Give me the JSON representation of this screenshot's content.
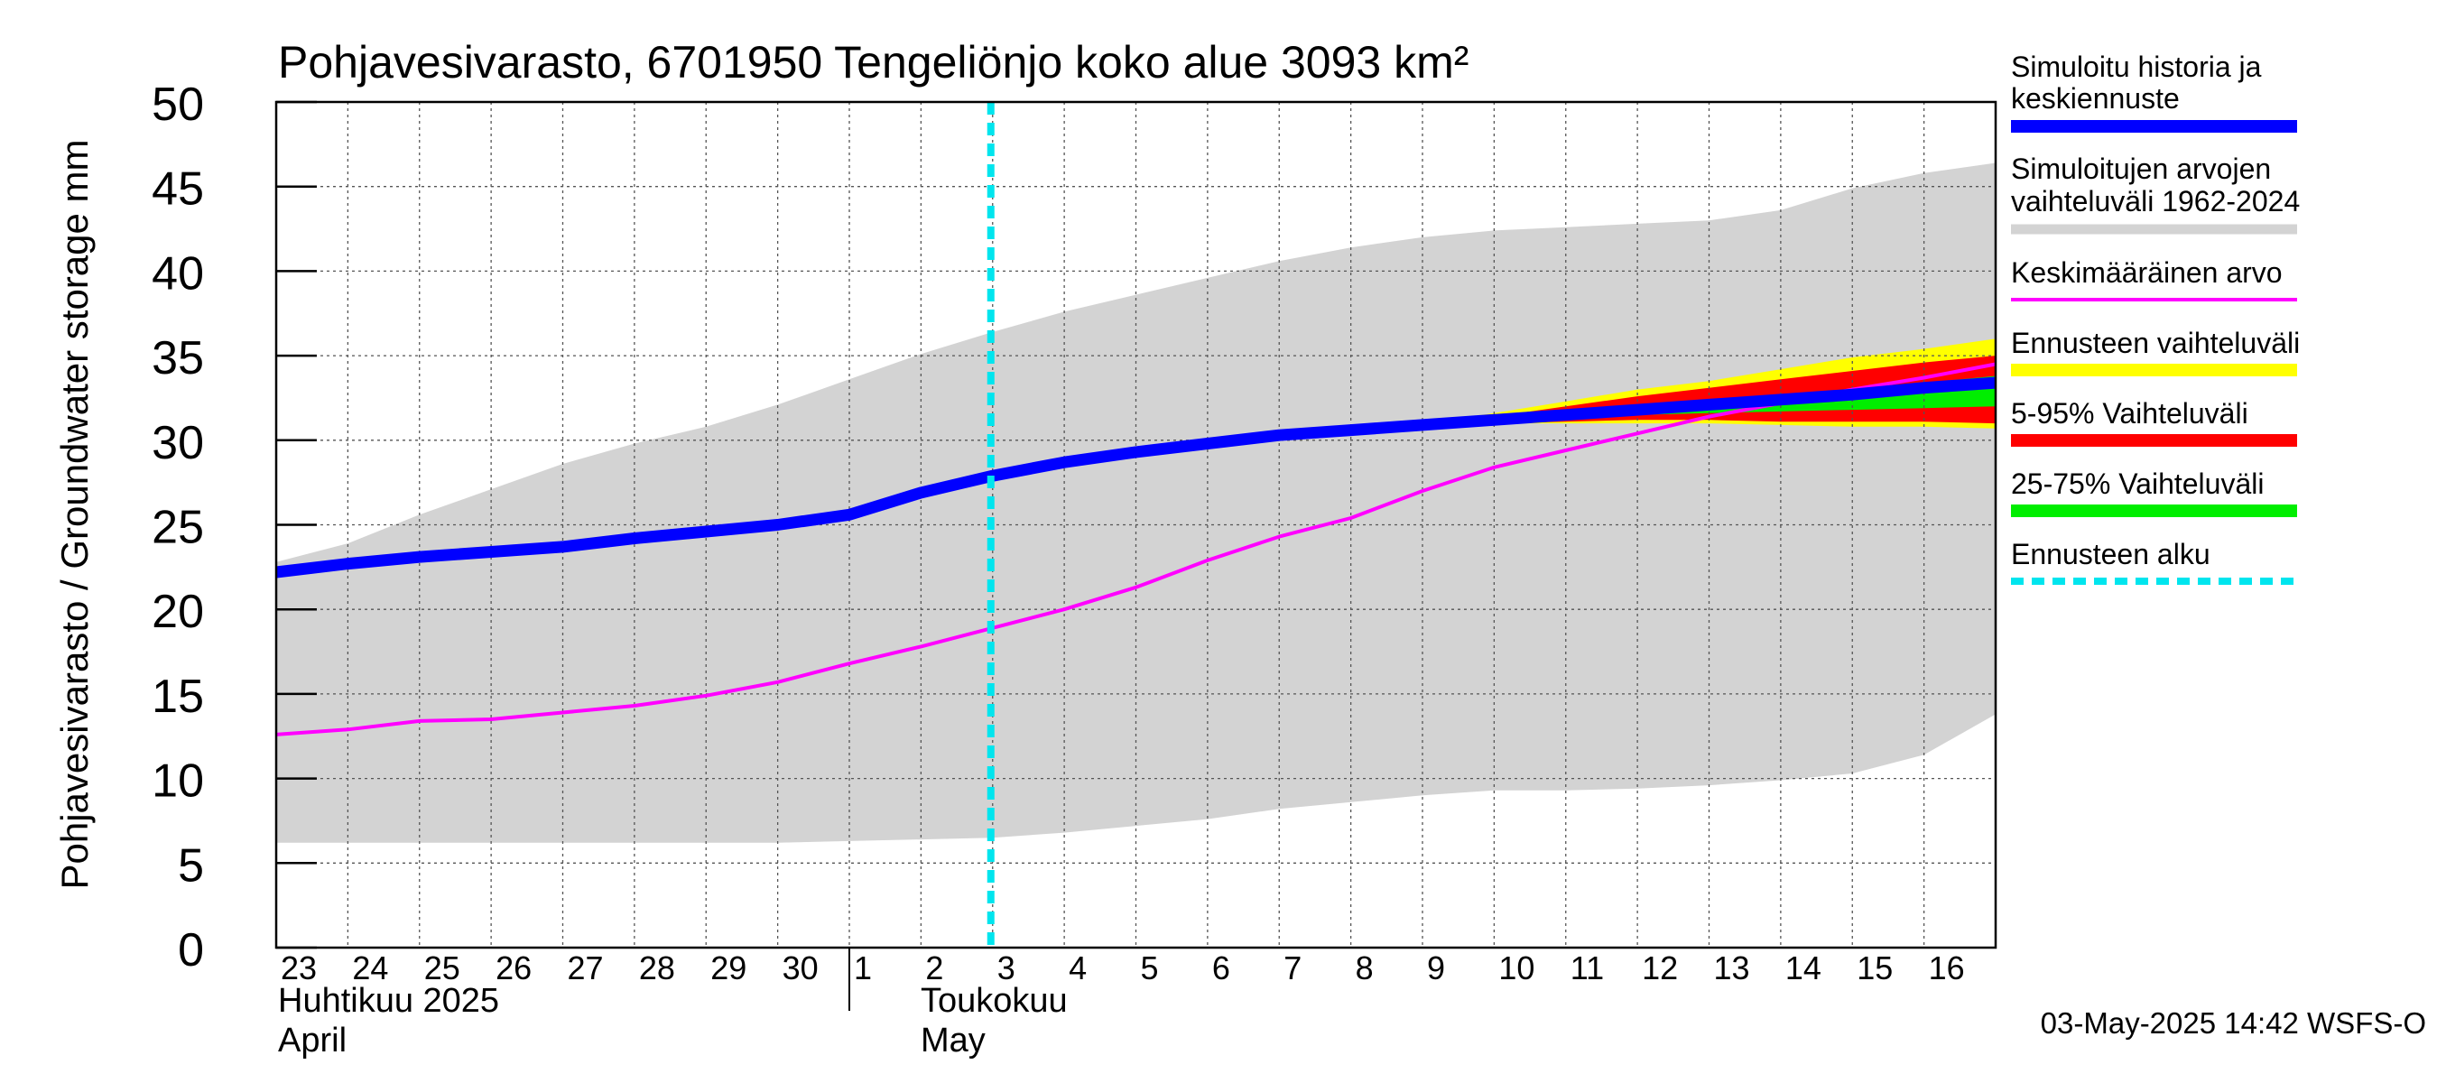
{
  "chart_data": {
    "type": "area",
    "title": "Pohjavesivarasto, 6701950 Tengeliönjo koko alue 3093 km²",
    "ylabel": "Pohjavesivarasto / Groundwater storage   mm",
    "ylim": [
      0,
      50
    ],
    "yticks": [
      "0",
      "5",
      "10",
      "15",
      "20",
      "25",
      "30",
      "35",
      "40",
      "45",
      "50"
    ],
    "x_days": [
      "23",
      "24",
      "25",
      "26",
      "27",
      "28",
      "29",
      "30",
      "1",
      "2",
      "3",
      "4",
      "5",
      "6",
      "7",
      "8",
      "9",
      "10",
      "11",
      "12",
      "13",
      "14",
      "15",
      "16"
    ],
    "month_labels": {
      "april_fi": "Huhtikuu  2025",
      "april_en": "April",
      "may_fi": "Toukokuu",
      "may_en": "May"
    },
    "forecast_start_index": 10,
    "x": [
      0,
      1,
      2,
      3,
      4,
      5,
      6,
      7,
      8,
      9,
      10,
      11,
      12,
      13,
      14,
      15,
      16,
      17,
      18,
      19,
      20,
      21,
      22,
      23,
      24
    ],
    "series": [
      {
        "name": "range_max",
        "values": [
          22.8,
          23.9,
          25.6,
          27.1,
          28.6,
          29.8,
          30.8,
          32.1,
          33.6,
          35.1,
          36.4,
          37.6,
          38.6,
          39.6,
          40.6,
          41.4,
          42.0,
          42.4,
          42.6,
          42.8,
          43.0,
          43.6,
          44.9,
          45.8,
          46.4
        ]
      },
      {
        "name": "range_min",
        "values": [
          6.2,
          6.2,
          6.2,
          6.2,
          6.2,
          6.2,
          6.2,
          6.2,
          6.3,
          6.4,
          6.5,
          6.8,
          7.2,
          7.6,
          8.2,
          8.6,
          9.0,
          9.3,
          9.3,
          9.4,
          9.6,
          9.9,
          10.3,
          11.4,
          13.8
        ]
      },
      {
        "name": "mean",
        "values": [
          12.6,
          12.9,
          13.4,
          13.5,
          13.9,
          14.3,
          14.9,
          15.7,
          16.8,
          17.8,
          18.9,
          20.0,
          21.3,
          22.9,
          24.3,
          25.4,
          27.0,
          28.4,
          29.4,
          30.4,
          31.4,
          32.2,
          33.0,
          33.7,
          34.5
        ]
      },
      {
        "name": "history_mean_forecast",
        "values": [
          22.2,
          22.7,
          23.1,
          23.4,
          23.7,
          24.2,
          24.6,
          25.0,
          25.6,
          26.9,
          27.9,
          28.7,
          29.3,
          29.8,
          30.3,
          30.6,
          30.9,
          31.2,
          31.5,
          31.8,
          32.1,
          32.4,
          32.7,
          33.1,
          33.4
        ]
      },
      {
        "name": "forecast_range_max",
        "values": [
          null,
          null,
          null,
          null,
          null,
          null,
          null,
          null,
          null,
          null,
          null,
          null,
          null,
          null,
          null,
          null,
          31.0,
          31.6,
          32.3,
          33.0,
          33.5,
          34.2,
          34.9,
          35.4,
          36.0
        ]
      },
      {
        "name": "forecast_range_min",
        "values": [
          null,
          null,
          null,
          null,
          null,
          null,
          null,
          null,
          null,
          null,
          null,
          null,
          null,
          null,
          null,
          null,
          30.9,
          31.0,
          31.0,
          31.0,
          31.0,
          30.9,
          30.8,
          30.8,
          30.7
        ]
      },
      {
        "name": "p95",
        "values": [
          null,
          null,
          null,
          null,
          null,
          null,
          null,
          null,
          null,
          null,
          null,
          null,
          null,
          null,
          null,
          null,
          31.0,
          31.4,
          32.0,
          32.6,
          33.1,
          33.6,
          34.1,
          34.6,
          35.0
        ]
      },
      {
        "name": "p5",
        "values": [
          null,
          null,
          null,
          null,
          null,
          null,
          null,
          null,
          null,
          null,
          null,
          null,
          null,
          null,
          null,
          null,
          30.9,
          31.0,
          31.1,
          31.2,
          31.2,
          31.1,
          31.1,
          31.1,
          31.0
        ]
      },
      {
        "name": "p75",
        "values": [
          null,
          null,
          null,
          null,
          null,
          null,
          null,
          null,
          null,
          null,
          null,
          null,
          null,
          null,
          null,
          null,
          30.9,
          31.2,
          31.6,
          31.9,
          32.2,
          32.6,
          33.0,
          33.4,
          33.8
        ]
      },
      {
        "name": "p25",
        "values": [
          null,
          null,
          null,
          null,
          null,
          null,
          null,
          null,
          null,
          null,
          null,
          null,
          null,
          null,
          null,
          null,
          30.9,
          31.1,
          31.3,
          31.5,
          31.6,
          31.7,
          31.8,
          31.9,
          32.0
        ]
      }
    ],
    "legend": [
      {
        "label": "Simuloitu historia ja keskiennuste",
        "line1": "Simuloitu historia ja",
        "line2": "keskiennuste",
        "color": "#0000ff",
        "style": "thick"
      },
      {
        "label": "Simuloitujen arvojen vaihteluväli 1962-2024",
        "line1": "Simuloitujen arvojen",
        "line2": "vaihteluväli 1962-2024",
        "color": "#d3d3d3",
        "style": "band"
      },
      {
        "label": "Keskimääräinen arvo",
        "line1": "Keskimääräinen arvo",
        "color": "#ff00ff",
        "style": "thin"
      },
      {
        "label": "Ennusteen vaihteluväli",
        "line1": "Ennusteen vaihteluväli",
        "color": "#ffff00",
        "style": "band"
      },
      {
        "label": "5-95% Vaihteluväli",
        "line1": "5-95% Vaihteluväli",
        "color": "#ff0000",
        "style": "band"
      },
      {
        "label": "25-75% Vaihteluväli",
        "line1": "25-75% Vaihteluväli",
        "color": "#00ee00",
        "style": "band"
      },
      {
        "label": "Ennusteen alku",
        "line1": "Ennusteen alku",
        "color": "#00e5ee",
        "style": "dashed"
      }
    ],
    "footer": "03-May-2025 14:42 WSFS-O",
    "colors": {
      "history": "#0000ff",
      "range": "#d3d3d3",
      "mean": "#ff00ff",
      "forecast_range": "#ffff00",
      "p5_95": "#ff0000",
      "p25_75": "#00ee00",
      "forecast_start": "#00e5ee",
      "grid": "#555555"
    }
  }
}
